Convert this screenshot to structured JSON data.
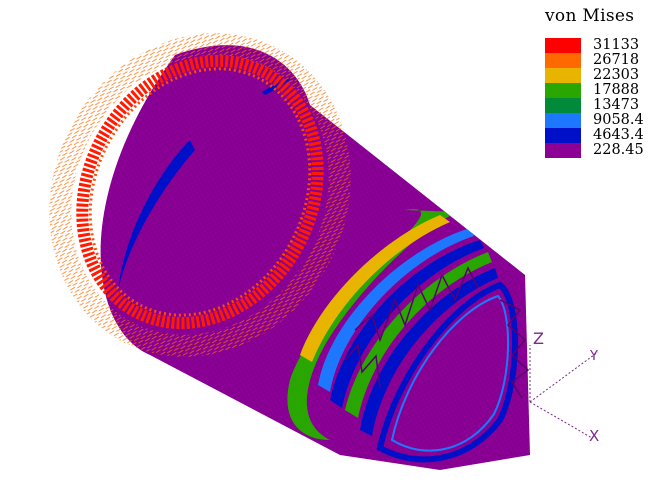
{
  "legend": {
    "title": "von Mises",
    "entries": [
      {
        "label": "31133",
        "color": "#ff0000"
      },
      {
        "label": "26718",
        "color": "#ff6a00"
      },
      {
        "label": "22303",
        "color": "#e8b400"
      },
      {
        "label": "17888",
        "color": "#2aa600"
      },
      {
        "label": "13473",
        "color": "#008a3a"
      },
      {
        "label": "9058.4",
        "color": "#1e78ff"
      },
      {
        "label": "4643.4",
        "color": "#0010c8"
      },
      {
        "label": "228.45",
        "color": "#8c0096"
      }
    ]
  },
  "axes": {
    "x_label": "X",
    "y_label": "Y",
    "z_label": "Z",
    "color": "#7a2a8a"
  },
  "model": {
    "body_color": "#8c0096",
    "rim_color": "#ff1a00",
    "vector_color": "#ff6a00",
    "band_green": "#2aa600",
    "band_yellow": "#e8b400",
    "band_cyan": "#1e78ff",
    "band_blue": "#0010c8"
  }
}
